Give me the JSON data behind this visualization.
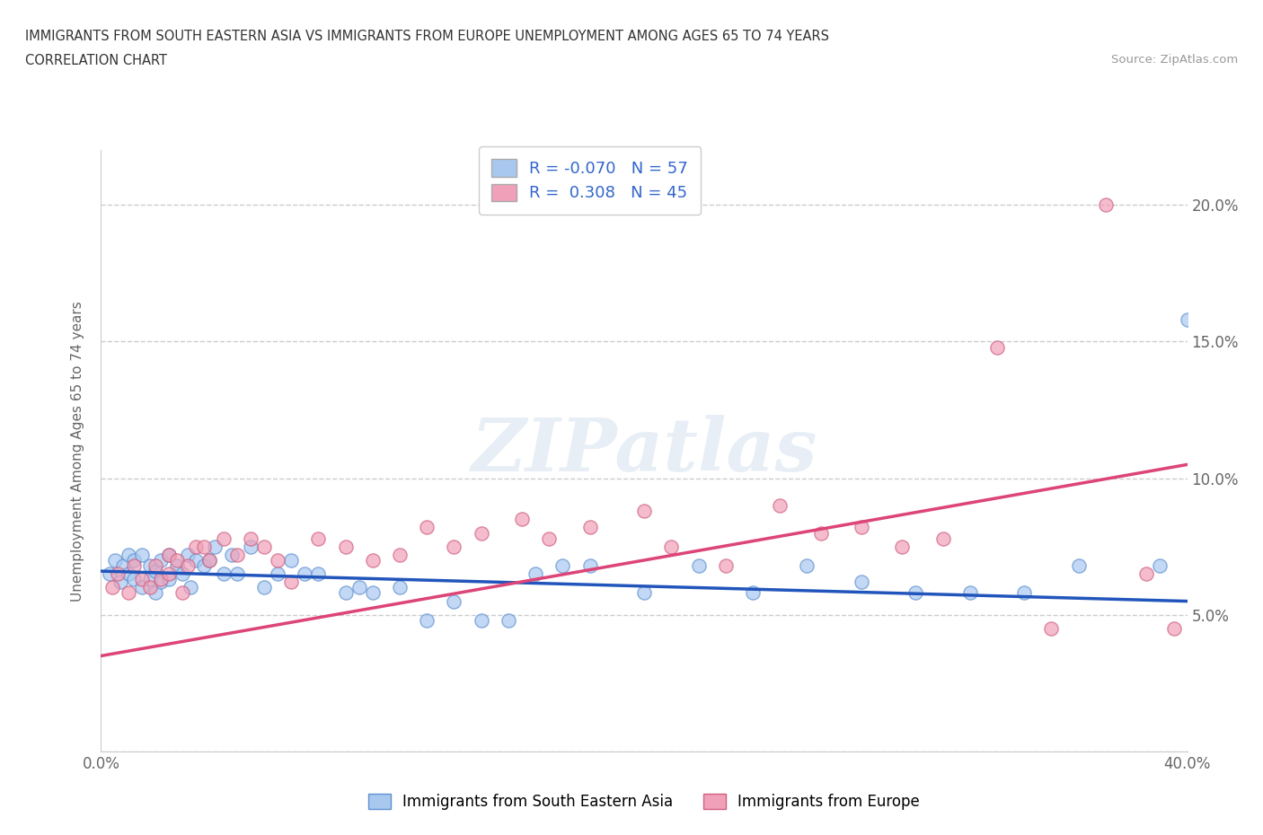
{
  "title_line1": "IMMIGRANTS FROM SOUTH EASTERN ASIA VS IMMIGRANTS FROM EUROPE UNEMPLOYMENT AMONG AGES 65 TO 74 YEARS",
  "title_line2": "CORRELATION CHART",
  "source_text": "Source: ZipAtlas.com",
  "ylabel": "Unemployment Among Ages 65 to 74 years",
  "xlim": [
    0,
    0.4
  ],
  "ylim": [
    0,
    0.22
  ],
  "blue_color": "#a8c8f0",
  "pink_color": "#f0a0b8",
  "blue_edge_color": "#6090d0",
  "pink_edge_color": "#d06080",
  "blue_line_color": "#2255bb",
  "pink_line_color": "#dd4477",
  "R_blue": -0.07,
  "N_blue": 57,
  "R_pink": 0.308,
  "N_pink": 45,
  "legend_label_blue": "Immigrants from South Eastern Asia",
  "legend_label_pink": "Immigrants from Europe",
  "blue_scatter_x": [
    0.003,
    0.005,
    0.007,
    0.008,
    0.01,
    0.01,
    0.012,
    0.012,
    0.015,
    0.015,
    0.018,
    0.018,
    0.02,
    0.02,
    0.022,
    0.022,
    0.025,
    0.025,
    0.028,
    0.03,
    0.032,
    0.033,
    0.035,
    0.038,
    0.04,
    0.042,
    0.045,
    0.048,
    0.05,
    0.055,
    0.06,
    0.065,
    0.07,
    0.075,
    0.08,
    0.09,
    0.095,
    0.1,
    0.11,
    0.12,
    0.13,
    0.14,
    0.15,
    0.16,
    0.17,
    0.18,
    0.2,
    0.22,
    0.24,
    0.26,
    0.28,
    0.3,
    0.32,
    0.34,
    0.36,
    0.39,
    0.4
  ],
  "blue_scatter_y": [
    0.065,
    0.07,
    0.062,
    0.068,
    0.065,
    0.072,
    0.063,
    0.07,
    0.06,
    0.072,
    0.063,
    0.068,
    0.058,
    0.066,
    0.062,
    0.07,
    0.063,
    0.072,
    0.068,
    0.065,
    0.072,
    0.06,
    0.07,
    0.068,
    0.07,
    0.075,
    0.065,
    0.072,
    0.065,
    0.075,
    0.06,
    0.065,
    0.07,
    0.065,
    0.065,
    0.058,
    0.06,
    0.058,
    0.06,
    0.048,
    0.055,
    0.048,
    0.048,
    0.065,
    0.068,
    0.068,
    0.058,
    0.068,
    0.058,
    0.068,
    0.062,
    0.058,
    0.058,
    0.058,
    0.068,
    0.068,
    0.158
  ],
  "pink_scatter_x": [
    0.004,
    0.006,
    0.01,
    0.012,
    0.015,
    0.018,
    0.02,
    0.022,
    0.025,
    0.025,
    0.028,
    0.03,
    0.032,
    0.035,
    0.038,
    0.04,
    0.045,
    0.05,
    0.055,
    0.06,
    0.065,
    0.07,
    0.08,
    0.09,
    0.1,
    0.11,
    0.12,
    0.13,
    0.14,
    0.155,
    0.165,
    0.18,
    0.2,
    0.21,
    0.23,
    0.25,
    0.265,
    0.28,
    0.295,
    0.31,
    0.33,
    0.35,
    0.37,
    0.385,
    0.395
  ],
  "pink_scatter_y": [
    0.06,
    0.065,
    0.058,
    0.068,
    0.063,
    0.06,
    0.068,
    0.063,
    0.065,
    0.072,
    0.07,
    0.058,
    0.068,
    0.075,
    0.075,
    0.07,
    0.078,
    0.072,
    0.078,
    0.075,
    0.07,
    0.062,
    0.078,
    0.075,
    0.07,
    0.072,
    0.082,
    0.075,
    0.08,
    0.085,
    0.078,
    0.082,
    0.088,
    0.075,
    0.068,
    0.09,
    0.08,
    0.082,
    0.075,
    0.078,
    0.148,
    0.045,
    0.2,
    0.065,
    0.045
  ],
  "watermark_text": "ZIPatlas",
  "background_color": "#ffffff",
  "grid_color": "#cccccc",
  "grid_style": "--"
}
